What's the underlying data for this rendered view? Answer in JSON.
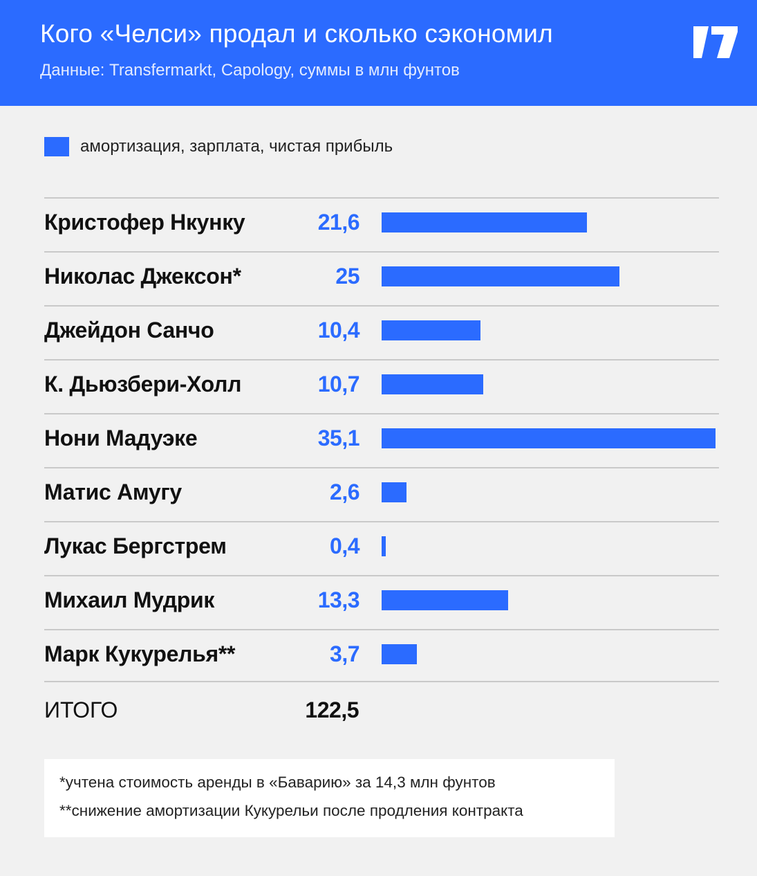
{
  "header": {
    "title": "Кого «Челси» продал и сколько сэкономил",
    "subtitle": "Данные: Transfermarkt, Capology, суммы в млн фунтов",
    "background_color": "#2b6bff",
    "logo_icon": "publisher-logo-icon"
  },
  "chart_data": {
    "type": "bar",
    "orientation": "horizontal",
    "legend": [
      {
        "label": "амортизация, зарплата, чистая прибыль",
        "color": "#2b6bff"
      }
    ],
    "legend_placement": "top-left",
    "categories": [
      "Кристофер Нкунку",
      "Николас Джексон*",
      "Джейдон Санчо",
      "К. Дьюзбери-Холл",
      "Нони Мадуэке",
      "Матис Амугу",
      "Лукас Бергстрем",
      "Михаил Мудрик",
      "Марк Кукурелья**"
    ],
    "values": [
      21.6,
      25,
      10.4,
      10.7,
      35.1,
      2.6,
      0.4,
      13.3,
      3.7
    ],
    "value_labels": [
      "21,6",
      "25",
      "10,4",
      "10,7",
      "35,1",
      "2,6",
      "0,4",
      "13,3",
      "3,7"
    ],
    "bar_color": "#2b6bff",
    "xlim": [
      0,
      35.1
    ],
    "grid": false,
    "total": {
      "label": "ИТОГО",
      "value": 122.5,
      "value_label": "122,5"
    }
  },
  "footnotes": [
    "*учтена стоимость аренды в «Баварию» за 14,3 млн фунтов",
    "**снижение амортизации Кукурельи после продления контракта"
  ]
}
